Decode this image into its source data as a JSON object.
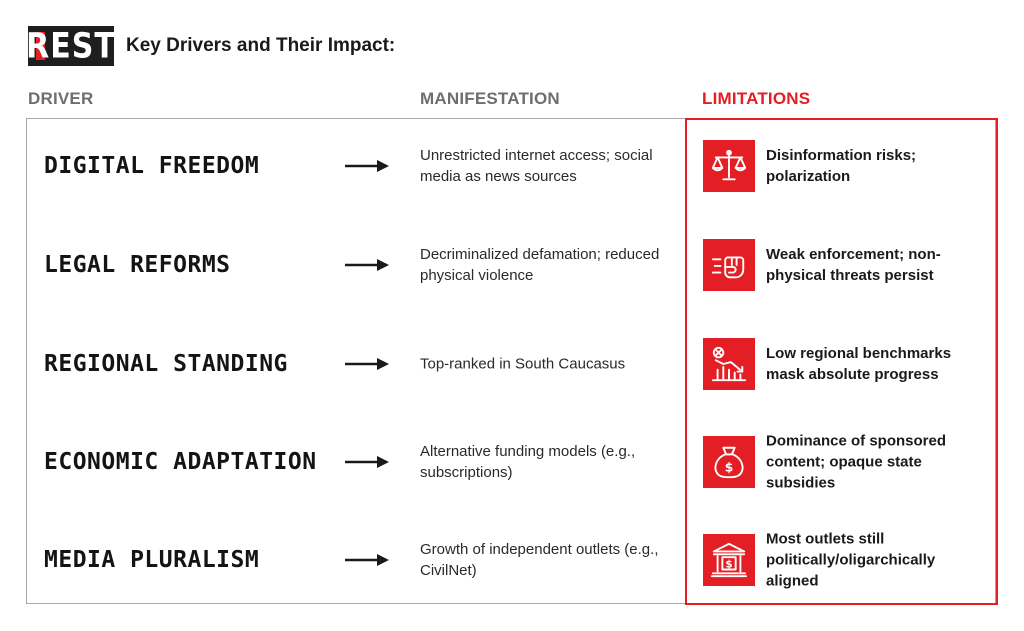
{
  "header": {
    "logo_text": "REST",
    "title": "Key Drivers and Their Impact:"
  },
  "columns": {
    "driver": "DRIVER",
    "manifestation": "MANIFESTATION",
    "limitations": "LIMITATIONS"
  },
  "colors": {
    "accent": "#e31e24",
    "text": "#1a1a1a",
    "muted": "#6e6e6e",
    "border": "#a8a8a8"
  },
  "rows": [
    {
      "driver": "DIGITAL FREEDOM",
      "manifestation": "Unrestricted internet access; social media as news sources",
      "limitation": "Disinformation risks; polarization",
      "icon": "scales-icon"
    },
    {
      "driver": "LEGAL REFORMS",
      "manifestation": "Decriminalized defamation; reduced physical violence",
      "limitation": "Weak enforcement; non-physical threats persist",
      "icon": "fist-icon"
    },
    {
      "driver": "REGIONAL STANDING",
      "manifestation": "Top-ranked in South Caucasus",
      "limitation": "Low regional benchmarks mask absolute progress",
      "icon": "declining-chart-icon"
    },
    {
      "driver": "ECONOMIC ADAPTATION",
      "manifestation": "Alternative funding models (e.g., subscriptions)",
      "limitation": "Dominance of sponsored content; opaque state subsidies",
      "icon": "money-bag-icon"
    },
    {
      "driver": "MEDIA PLURALISM",
      "manifestation": "Growth of independent outlets (e.g., CivilNet)",
      "limitation": "Most outlets still politically/oligarchically aligned",
      "icon": "bank-icon"
    }
  ]
}
